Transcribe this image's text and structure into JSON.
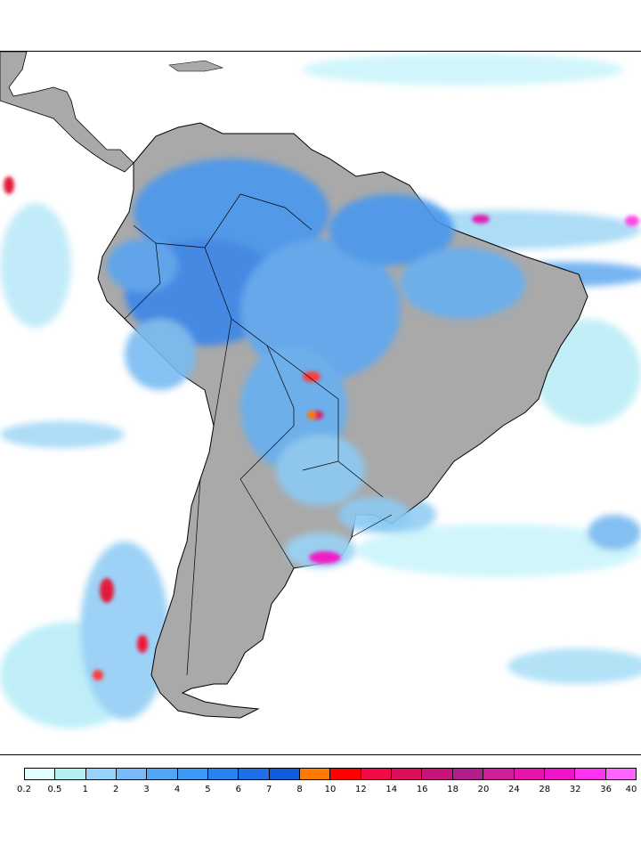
{
  "map": {
    "region": "South America",
    "land_color": "#a9a9a9",
    "ocean_color": "#ffffff",
    "border_color": "#000000"
  },
  "legend": {
    "colors": [
      "#e0fefe",
      "#b4f0f0",
      "#96d2fa",
      "#78b9fa",
      "#50a5f5",
      "#3c97f5",
      "#2882f0",
      "#1e6ee6",
      "#0f5cdc",
      "#ff7800",
      "#ff0000",
      "#f00a46",
      "#dc0f5a",
      "#c81478",
      "#b41e8c",
      "#d21e9b",
      "#e614aa",
      "#f014c8",
      "#ff32f0",
      "#ff64ff"
    ],
    "labels": [
      "0.2",
      "0.5",
      "1",
      "2",
      "3",
      "4",
      "5",
      "6",
      "7",
      "8",
      "10",
      "12",
      "14",
      "16",
      "18",
      "20",
      "24",
      "28",
      "32",
      "36",
      "40"
    ]
  }
}
